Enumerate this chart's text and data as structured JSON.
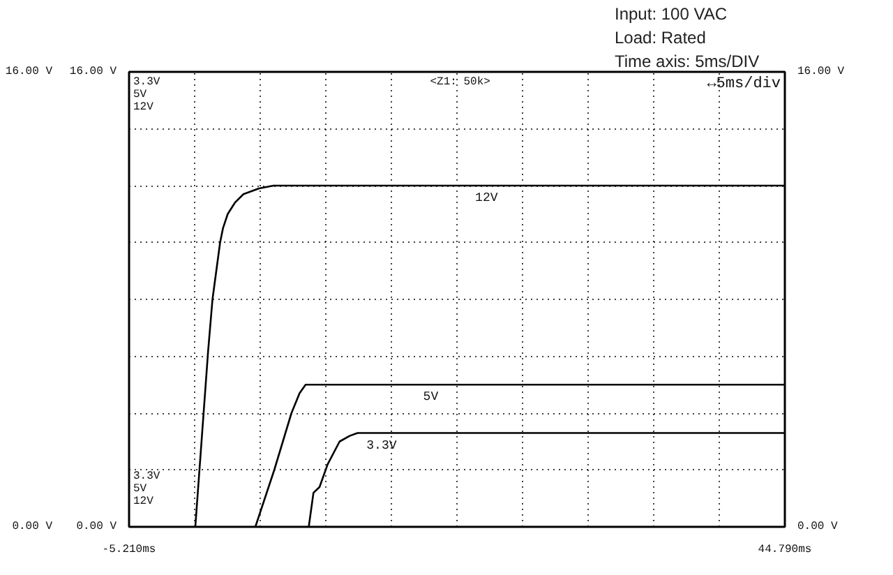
{
  "chart_data": {
    "type": "line",
    "xlim": [
      -5.21,
      44.79
    ],
    "xticks": [
      {
        "value": -5.21,
        "label": "-5.210ms"
      },
      {
        "value": -0.21,
        "label": null
      },
      {
        "value": 4.79,
        "label": null
      },
      {
        "value": 9.79,
        "label": null
      },
      {
        "value": 14.79,
        "label": null
      },
      {
        "value": 19.79,
        "label": null
      },
      {
        "value": 24.79,
        "label": null
      },
      {
        "value": 29.79,
        "label": null
      },
      {
        "value": 34.79,
        "label": null
      },
      {
        "value": 39.79,
        "label": null
      },
      {
        "value": 44.79,
        "label": "44.790ms"
      }
    ],
    "ylim": [
      0,
      16
    ],
    "yticks": [
      {
        "value": 0,
        "label": "0.00 V"
      },
      {
        "value": 2,
        "label": null
      },
      {
        "value": 4,
        "label": null
      },
      {
        "value": 6,
        "label": null
      },
      {
        "value": 8,
        "label": null
      },
      {
        "value": 10,
        "label": null
      },
      {
        "value": 12,
        "label": null
      },
      {
        "value": 14,
        "label": null
      },
      {
        "value": 16,
        "label": "16.00 V"
      }
    ],
    "y2lim": [
      0,
      16
    ],
    "y2ticks": [
      {
        "value": 0,
        "label": "0.00 V"
      },
      {
        "value": 16,
        "label": "16.00 V"
      }
    ],
    "y3lim": [
      0,
      16
    ],
    "y3ticks": [
      {
        "value": 0,
        "label": "0.00 V"
      },
      {
        "value": 16,
        "label": "16.00 V"
      }
    ],
    "grid": true,
    "line_style": "solid",
    "series": [
      {
        "name": "3.3V",
        "color": "#000000",
        "axis": "y",
        "x": [
          8.49,
          8.85,
          9.31,
          9.93,
          10.84,
          11.61,
          12.22,
          44.79
        ],
        "values": [
          0,
          1.2,
          1.4,
          2.2,
          3.0,
          3.2,
          3.3,
          3.3
        ]
      },
      {
        "name": "5V",
        "color": "#000000",
        "axis": "y2",
        "x": [
          4.42,
          5.86,
          7.17,
          7.79,
          8.25,
          44.79
        ],
        "values": [
          0,
          2.0,
          4.0,
          4.7,
          5.0,
          5.0
        ]
      },
      {
        "name": "12V",
        "color": "#000000",
        "axis": "y3",
        "x": [
          -0.16,
          0.82,
          1.15,
          1.73,
          1.95,
          2.31,
          2.86,
          3.51,
          4.7,
          5.8,
          44.79
        ],
        "values": [
          0,
          6.2,
          8.0,
          10.0,
          10.5,
          11.0,
          11.4,
          11.7,
          11.9,
          12.0,
          12.0
        ]
      }
    ],
    "annotations": [
      "3.3V",
      "5V",
      "12V",
      "3.3V",
      "5V",
      "12V",
      "<Z1: 50k>",
      "↔5ms/div",
      "Input: 100 VAC",
      "Load: Rated",
      "Time axis: 5ms/DIV"
    ]
  }
}
